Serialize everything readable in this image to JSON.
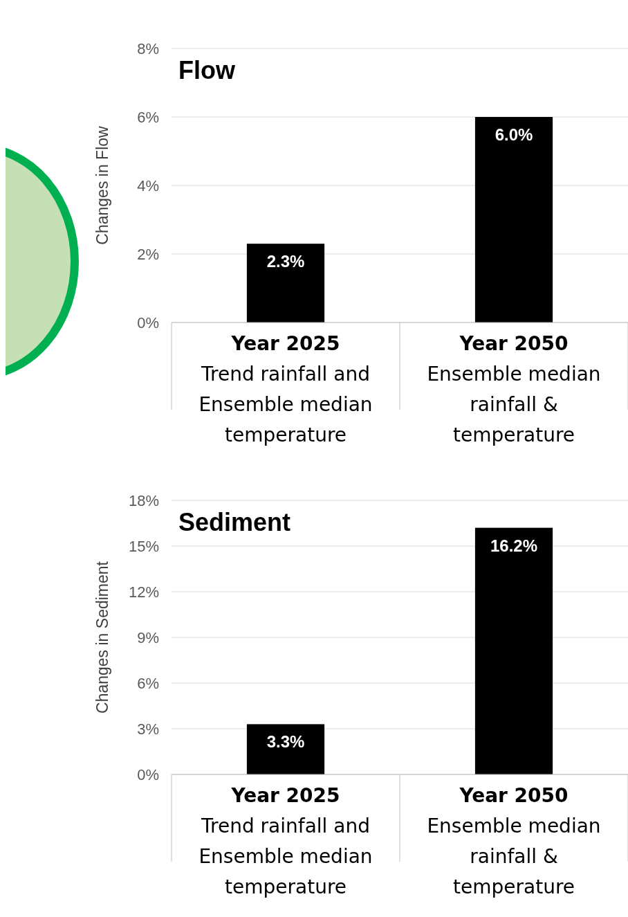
{
  "chart_data": [
    {
      "type": "bar",
      "title": "Flow",
      "ylabel": "Changes in Flow",
      "categories": [
        "Year 2025\nTrend rainfall and\nEnsemble median\ntemperature",
        "Year 2050\nEnsemble median\nrainfall &\ntemperature"
      ],
      "values": [
        2.3,
        6.0
      ],
      "color": "#000000",
      "ylim": [
        0,
        8
      ],
      "yticks": [
        {
          "value": 0,
          "label": "0%"
        },
        {
          "value": 2,
          "label": "2%"
        },
        {
          "value": 4,
          "label": "4%"
        },
        {
          "value": 6,
          "label": "6%"
        },
        {
          "value": 8,
          "label": "8%"
        }
      ],
      "value_labels": [
        "2.3%",
        "6.0%"
      ],
      "grid": "y"
    },
    {
      "type": "bar",
      "title": "Sediment",
      "ylabel": "Changes in Sediment",
      "categories": [
        "Year 2025\nTrend rainfall and\nEnsemble median\ntemperature",
        "Year 2050\nEnsemble median\nrainfall &\ntemperature"
      ],
      "values": [
        3.3,
        16.2
      ],
      "color": "#000000",
      "ylim": [
        0,
        18
      ],
      "yticks": [
        {
          "value": 0,
          "label": "0%"
        },
        {
          "value": 3,
          "label": "3%"
        },
        {
          "value": 6,
          "label": "6%"
        },
        {
          "value": 9,
          "label": "9%"
        },
        {
          "value": 12,
          "label": "12%"
        },
        {
          "value": 15,
          "label": "15%"
        },
        {
          "value": 18,
          "label": "18%"
        }
      ],
      "value_labels": [
        "3.3%",
        "16.2%"
      ],
      "grid": "y"
    }
  ]
}
